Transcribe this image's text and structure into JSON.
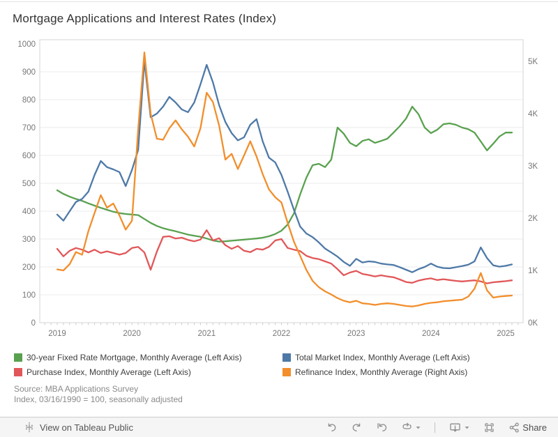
{
  "title": "Mortgage Applications and Interest Rates (Index)",
  "source": {
    "line1": "Source: MBA Applications Survey",
    "line2": "Index, 03/16/1990 = 100, seasonally adjusted"
  },
  "toolbar": {
    "view_label": "View on Tableau Public",
    "share_label": "Share",
    "icons": [
      "tableau-logo",
      "undo",
      "redo",
      "reset",
      "refresh",
      "caret-down",
      "download",
      "fullscreen",
      "share"
    ]
  },
  "legend": {
    "items": [
      {
        "label": "30-year Fixed Rate Mortgage, Monthly Average (Left Axis)",
        "color": "#59A14F"
      },
      {
        "label": "Total Market Index, Monthly Average (Left Axis)",
        "color": "#4E79A7"
      },
      {
        "label": "Purchase Index, Monthly Average (Left Axis)",
        "color": "#E15759"
      },
      {
        "label": "Refinance Index, Monthly Average (Right Axis)",
        "color": "#F28E2B"
      }
    ]
  },
  "chart_data": {
    "type": "line",
    "title": "Mortgage Applications and Interest Rates (Index)",
    "x_unit": "month",
    "x_start": "2019-01",
    "x_end": "2025-02",
    "x_tick_labels": [
      "2019",
      "2020",
      "2021",
      "2022",
      "2023",
      "2024",
      "2025"
    ],
    "grid": true,
    "left_axis": {
      "min": 0,
      "max": 1000,
      "ticks": [
        0,
        100,
        200,
        300,
        400,
        500,
        600,
        700,
        800,
        900,
        1000
      ]
    },
    "right_axis": {
      "max_k": 5.333,
      "tick_labels": [
        "0K",
        "1K",
        "2K",
        "3K",
        "4K",
        "5K"
      ],
      "tick_values_k": [
        0,
        1,
        2,
        3,
        4,
        5
      ]
    },
    "series": [
      {
        "name": "30-year Fixed Rate Mortgage, Monthly Average (Left Axis)",
        "axis": "left",
        "color": "#59A14F",
        "values": [
          475,
          462,
          452,
          444,
          437,
          428,
          420,
          412,
          405,
          398,
          393,
          390,
          388,
          386,
          372,
          358,
          347,
          339,
          333,
          328,
          322,
          316,
          312,
          308,
          302,
          295,
          291,
          292,
          294,
          296,
          298,
          300,
          302,
          305,
          310,
          318,
          330,
          352,
          392,
          460,
          520,
          565,
          570,
          558,
          585,
          700,
          678,
          645,
          633,
          652,
          658,
          645,
          652,
          660,
          682,
          705,
          732,
          775,
          748,
          700,
          680,
          692,
          712,
          715,
          710,
          700,
          694,
          682,
          650,
          618,
          642,
          668,
          682,
          682
        ]
      },
      {
        "name": "Total Market Index, Monthly Average (Left Axis)",
        "axis": "left",
        "color": "#4E79A7",
        "values": [
          388,
          366,
          400,
          433,
          444,
          470,
          530,
          580,
          558,
          550,
          540,
          490,
          548,
          620,
          940,
          737,
          750,
          775,
          810,
          790,
          765,
          755,
          790,
          855,
          925,
          862,
          780,
          720,
          680,
          654,
          665,
          710,
          730,
          650,
          592,
          575,
          530,
          470,
          405,
          345,
          320,
          307,
          288,
          266,
          252,
          237,
          218,
          204,
          229,
          216,
          220,
          218,
          212,
          209,
          207,
          199,
          190,
          181,
          192,
          200,
          212,
          201,
          196,
          195,
          199,
          203,
          208,
          220,
          270,
          232,
          206,
          201,
          204,
          209
        ]
      },
      {
        "name": "Purchase Index, Monthly Average (Left Axis)",
        "axis": "left",
        "color": "#E15759",
        "values": [
          265,
          238,
          258,
          268,
          262,
          252,
          262,
          250,
          256,
          250,
          244,
          250,
          268,
          272,
          252,
          190,
          255,
          308,
          310,
          302,
          305,
          297,
          292,
          298,
          332,
          295,
          303,
          278,
          265,
          275,
          258,
          253,
          265,
          262,
          272,
          295,
          300,
          268,
          262,
          257,
          240,
          232,
          228,
          220,
          212,
          192,
          170,
          180,
          186,
          175,
          171,
          166,
          170,
          166,
          163,
          155,
          146,
          143,
          151,
          156,
          159,
          153,
          156,
          153,
          150,
          148,
          150,
          152,
          148,
          141,
          145,
          147,
          149,
          152
        ]
      },
      {
        "name": "Refinance Index, Monthly Average (Right Axis)",
        "axis": "right",
        "color": "#F28E2B",
        "values_k": [
          1.02,
          1.0,
          1.12,
          1.35,
          1.3,
          1.75,
          2.1,
          2.44,
          2.2,
          2.28,
          2.05,
          1.78,
          1.95,
          3.7,
          5.17,
          4.0,
          3.52,
          3.5,
          3.72,
          3.87,
          3.7,
          3.56,
          3.37,
          3.72,
          4.4,
          4.22,
          3.77,
          3.12,
          3.23,
          2.94,
          3.2,
          3.47,
          3.18,
          2.84,
          2.55,
          2.4,
          2.3,
          1.91,
          1.55,
          1.28,
          1.01,
          0.8,
          0.68,
          0.6,
          0.54,
          0.47,
          0.42,
          0.39,
          0.42,
          0.37,
          0.36,
          0.34,
          0.36,
          0.37,
          0.36,
          0.34,
          0.32,
          0.31,
          0.33,
          0.36,
          0.38,
          0.39,
          0.41,
          0.42,
          0.43,
          0.44,
          0.5,
          0.65,
          0.95,
          0.62,
          0.48,
          0.5,
          0.51,
          0.52
        ]
      }
    ]
  }
}
